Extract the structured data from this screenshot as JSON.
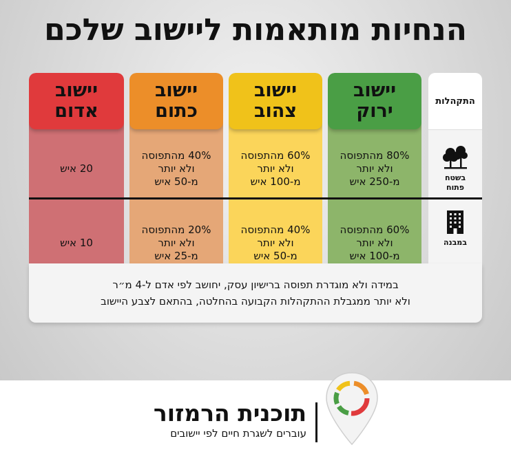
{
  "title": "הנחיות מותאמות ליישוב שלכם",
  "header_column": {
    "label": "התקהלות",
    "rows": [
      {
        "icon": "trees-icon",
        "label": "בשטח פתוח"
      },
      {
        "icon": "building-icon",
        "label": "במבנה"
      }
    ]
  },
  "columns": [
    {
      "line1": "יישוב",
      "line2": "ירוק",
      "header_color": "#4a9e45",
      "body_color": "#8db56a",
      "open": [
        "80% מהתפוסה",
        "ולא יותר",
        "מ-250 איש"
      ],
      "indoor": [
        "60% מהתפוסה",
        "ולא יותר",
        "מ-100 איש"
      ]
    },
    {
      "line1": "יישוב",
      "line2": "צהוב",
      "header_color": "#f0c21a",
      "body_color": "#fbd55a",
      "open": [
        "60% מהתפוסה",
        "ולא יותר",
        "מ-100 איש"
      ],
      "indoor": [
        "40% מהתפוסה",
        "ולא יותר",
        "מ-50 איש"
      ]
    },
    {
      "line1": "יישוב",
      "line2": "כתום",
      "header_color": "#ec8e29",
      "body_color": "#e5a777",
      "open": [
        "40% מהתפוסה",
        "ולא יותר",
        "מ-50 איש"
      ],
      "indoor": [
        "20% מהתפוסה",
        "ולא יותר",
        "מ-25 איש"
      ]
    },
    {
      "line1": "יישוב",
      "line2": "אדום",
      "header_color": "#e03a3c",
      "body_color": "#cf7074",
      "open": [
        "20 איש"
      ],
      "indoor": [
        "10 איש"
      ]
    }
  ],
  "note": {
    "line1": "במידה ולא מוגדרת תפוסה ברישיון עסק, יחושב לפי אדם ל-4 מ״ר",
    "line2": "ולא יותר ממגבלת ההתקהלות הקבועה בהחלטה, בהתאם לצבע היישוב"
  },
  "footer": {
    "brand_title": "תוכנית הרמזור",
    "brand_subtitle": "עוברים לשגרת חיים לפי יישובים",
    "logo_colors": [
      "#4a9e45",
      "#f0c21a",
      "#ec8e29",
      "#e03a3c"
    ]
  }
}
